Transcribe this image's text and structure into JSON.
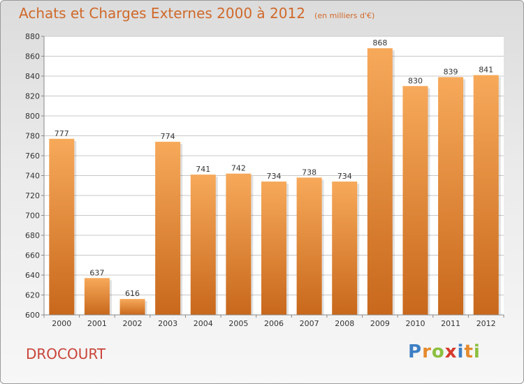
{
  "header": {
    "title": "Achats et Charges Externes 2000 à 2012",
    "subtitle": "(en milliers d'€)"
  },
  "footer": {
    "commune": "DROCOURT",
    "brand_letters": [
      {
        "char": "P",
        "color": "#3d7fc4"
      },
      {
        "char": "r",
        "color": "#e58a2c"
      },
      {
        "char": "o",
        "color": "#8cbf3f"
      },
      {
        "char": "x",
        "color": "#d8392b"
      },
      {
        "char": "i",
        "color": "#3d7fc4"
      },
      {
        "char": "t",
        "color": "#e58a2c"
      },
      {
        "char": "i",
        "color": "#8cbf3f"
      }
    ]
  },
  "chart_data": {
    "type": "bar",
    "categories": [
      "2000",
      "2001",
      "2002",
      "2003",
      "2004",
      "2005",
      "2006",
      "2007",
      "2008",
      "2009",
      "2010",
      "2011",
      "2012"
    ],
    "values": [
      777,
      637,
      616,
      774,
      741,
      742,
      734,
      738,
      734,
      868,
      830,
      839,
      841
    ],
    "ylim": [
      600,
      880
    ],
    "yticks": [
      600,
      620,
      640,
      660,
      680,
      700,
      720,
      740,
      760,
      780,
      800,
      820,
      840,
      860,
      880
    ],
    "grid": true,
    "colors": {
      "bar_top": "#f7a95a",
      "bar_bottom": "#c8681c",
      "grid": "#c8c8c8",
      "label": "#333333"
    }
  }
}
